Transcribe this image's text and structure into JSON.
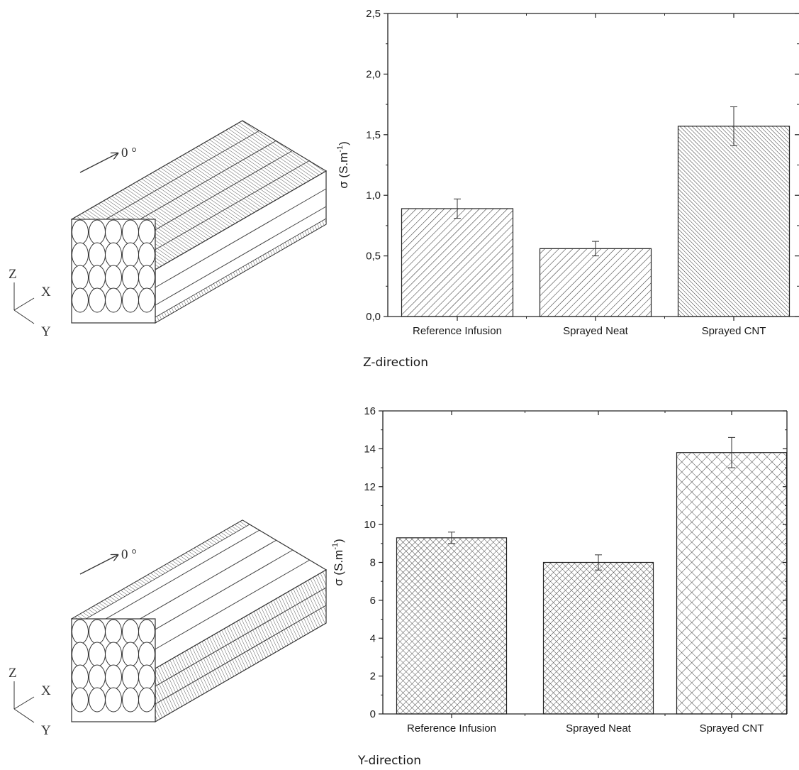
{
  "chart_data": [
    {
      "type": "bar",
      "caption": "Z-direction",
      "ylabel": "σ (S.m-1)",
      "ylabel_base": "σ (S.m",
      "ylabel_sup": "-1",
      "ylabel_close": ")",
      "categories": [
        "Reference Infusion",
        "Sprayed Neat",
        "Sprayed CNT"
      ],
      "values": [
        0.89,
        0.56,
        1.57
      ],
      "errors": [
        0.08,
        0.06,
        0.16
      ],
      "ylim": [
        0,
        2.5
      ],
      "yticks": [
        "0,0",
        "0,5",
        "1,0",
        "1,5",
        "2,0",
        "2,5"
      ],
      "hatch": [
        "diagonal-wide",
        "diagonal-wide",
        "diagonal-dense"
      ],
      "grid": false
    },
    {
      "type": "bar",
      "caption": "Y-direction",
      "ylabel": "σ (S.m-1)",
      "ylabel_base": "σ (S.m",
      "ylabel_sup": "-1",
      "ylabel_close": ")",
      "categories": [
        "Reference Infusion",
        "Sprayed Neat",
        "Sprayed CNT"
      ],
      "values": [
        9.3,
        8.0,
        13.8
      ],
      "errors": [
        0.3,
        0.4,
        0.8
      ],
      "ylim": [
        0,
        16
      ],
      "yticks": [
        "0",
        "2",
        "4",
        "6",
        "8",
        "10",
        "12",
        "14",
        "16"
      ],
      "hatch": [
        "crosshatch-dense",
        "crosshatch-dense",
        "crosshatch-wide"
      ],
      "grid": false
    }
  ],
  "diagram": {
    "angle_label": "0 °",
    "axis_labels": [
      "Z",
      "X",
      "Y"
    ]
  }
}
